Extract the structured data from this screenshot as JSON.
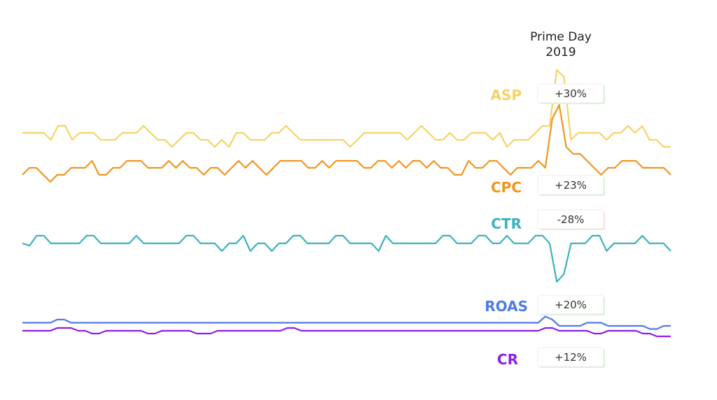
{
  "chart_data": {
    "type": "line",
    "title": "",
    "xlabel": "",
    "ylabel": "",
    "annotation": {
      "line1": "Prime Day",
      "line2": "2019"
    },
    "series": [
      {
        "name": "ASP",
        "color": "#f6d365",
        "change": "+30%",
        "change_color": "#d9f2da",
        "values": [
          0,
          0,
          0,
          0,
          -1,
          1,
          1,
          -1,
          0,
          0,
          0,
          -1,
          -1,
          -1,
          0,
          0,
          0,
          1,
          0,
          -1,
          -1,
          -2,
          -1,
          0,
          0,
          -1,
          -1,
          -2,
          -1,
          -2,
          0,
          0,
          -1,
          -1,
          -1,
          0,
          0,
          1,
          0,
          -1,
          -1,
          -1,
          -1,
          -1,
          -1,
          -1,
          -2,
          -1,
          0,
          0,
          0,
          0,
          0,
          0,
          -1,
          0,
          1,
          0,
          -1,
          -1,
          0,
          -1,
          -1,
          0,
          0,
          0,
          -1,
          0,
          -2,
          -1,
          -1,
          -1,
          0,
          1,
          1,
          9,
          8,
          -1,
          0,
          0,
          0,
          0,
          -1,
          0,
          0,
          1,
          0,
          1,
          -1,
          -1,
          -2,
          -2
        ]
      },
      {
        "name": "CPC",
        "color": "#f0961f",
        "change": "+23%",
        "change_color": "#d9f2da",
        "values": [
          -1,
          0,
          0,
          -1,
          -2,
          -1,
          -1,
          0,
          0,
          0,
          1,
          -1,
          -1,
          0,
          0,
          1,
          1,
          1,
          0,
          0,
          0,
          1,
          0,
          1,
          0,
          0,
          -1,
          0,
          0,
          -1,
          0,
          1,
          0,
          1,
          0,
          -1,
          0,
          1,
          1,
          1,
          1,
          0,
          0,
          1,
          0,
          1,
          1,
          1,
          1,
          0,
          0,
          1,
          1,
          0,
          1,
          0,
          1,
          1,
          0,
          1,
          0,
          0,
          -1,
          -1,
          1,
          0,
          0,
          1,
          1,
          0,
          -1,
          0,
          0,
          0,
          1,
          0,
          7,
          9,
          3,
          2,
          2,
          1,
          0,
          -1,
          0,
          0,
          1,
          1,
          1,
          0,
          0,
          0,
          0,
          -1
        ]
      },
      {
        "name": "CTR",
        "color": "#3bb3bd",
        "change": "-28%",
        "change_color": "#f9dde3",
        "values": [
          0,
          -0.3,
          1,
          1,
          0,
          0,
          0,
          0,
          0,
          1,
          1,
          0,
          0,
          0,
          0,
          0,
          1,
          0,
          0,
          0,
          0,
          0,
          0,
          1,
          1,
          0,
          0,
          0,
          -1,
          0,
          0,
          1,
          -1,
          0,
          0,
          -1,
          0,
          0,
          1,
          1,
          0,
          0,
          0,
          0,
          1,
          1,
          0,
          0,
          0,
          0,
          -1,
          1,
          0,
          0,
          0,
          0,
          0,
          0,
          0,
          1,
          1,
          0,
          0,
          0,
          1,
          1,
          0,
          0,
          1,
          0,
          0,
          0,
          1,
          1,
          0,
          -5,
          -4,
          0,
          0,
          0,
          1,
          1,
          -1,
          0,
          0,
          0,
          0,
          1,
          0,
          0,
          0,
          -1
        ]
      },
      {
        "name": "ROAS",
        "color": "#4f7be8",
        "change": "+20%",
        "change_color": "#d9f2da",
        "values": [
          1,
          1,
          1,
          1,
          1,
          2,
          2,
          1,
          1,
          1,
          1,
          1,
          1,
          1,
          1,
          1,
          1,
          1,
          1,
          1,
          1,
          1,
          1,
          1,
          1,
          1,
          1,
          1,
          1,
          1,
          1,
          1,
          1,
          1,
          1,
          1,
          1,
          1,
          1,
          1,
          1,
          1,
          1,
          1,
          1,
          1,
          1,
          1,
          1,
          1,
          1,
          1,
          1,
          1,
          1,
          1,
          1,
          1,
          1,
          1,
          1,
          1,
          1,
          1,
          1,
          1,
          1,
          1,
          1,
          1,
          1,
          1,
          1,
          1,
          1,
          3,
          2,
          0,
          0,
          0,
          0,
          1,
          1,
          1,
          0,
          0,
          0,
          0,
          0,
          0,
          -1,
          -1,
          0,
          0
        ]
      },
      {
        "name": "CR",
        "color": "#8d1ee8",
        "change": "+12%",
        "change_color": "#d9f2da",
        "values": [
          0,
          0,
          0,
          0,
          0,
          1,
          1,
          1,
          0,
          0,
          -1,
          -1,
          0,
          0,
          0,
          0,
          0,
          0,
          -1,
          -1,
          0,
          0,
          0,
          0,
          0,
          -1,
          -1,
          -1,
          0,
          0,
          0,
          0,
          0,
          0,
          0,
          0,
          0,
          0,
          1,
          1,
          0,
          0,
          0,
          0,
          0,
          0,
          0,
          0,
          0,
          0,
          0,
          0,
          0,
          0,
          0,
          0,
          0,
          0,
          0,
          0,
          0,
          0,
          0,
          0,
          0,
          0,
          0,
          0,
          0,
          0,
          0,
          0,
          0,
          0,
          0,
          1,
          1,
          0,
          0,
          0,
          0,
          0,
          -1,
          -1,
          0,
          0,
          0,
          0,
          0,
          -1,
          -1,
          -2,
          -2,
          -2
        ]
      }
    ]
  }
}
